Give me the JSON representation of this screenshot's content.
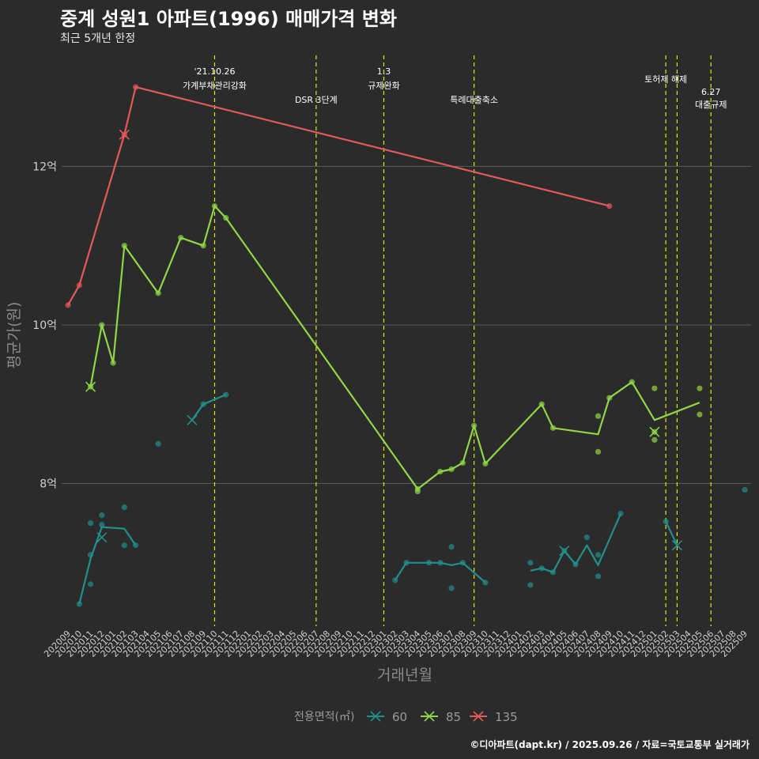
{
  "chart_data": {
    "type": "line",
    "title": "중계 성원1 아파트(1996) 매매가격 변화",
    "subtitle": "최근 5개년 한정",
    "xlabel": "거래년월",
    "ylabel": "평균가(원)",
    "ylim": [
      6.2,
      13.5
    ],
    "yticks": [
      {
        "value": 8,
        "label": "8억"
      },
      {
        "value": 10,
        "label": "10억"
      },
      {
        "value": 12,
        "label": "12억"
      }
    ],
    "categories": [
      "202009",
      "202010",
      "202011",
      "202012",
      "202101",
      "202102",
      "202103",
      "202104",
      "202105",
      "202106",
      "202107",
      "202108",
      "202109",
      "202110",
      "202111",
      "202112",
      "202201",
      "202202",
      "202203",
      "202204",
      "202205",
      "202206",
      "202207",
      "202208",
      "202209",
      "202210",
      "202211",
      "202212",
      "202301",
      "202302",
      "202303",
      "202304",
      "202305",
      "202306",
      "202307",
      "202308",
      "202309",
      "202310",
      "202311",
      "202312",
      "202401",
      "202402",
      "202403",
      "202404",
      "202405",
      "202406",
      "202407",
      "202408",
      "202409",
      "202410",
      "202411",
      "202412",
      "202501",
      "202502",
      "202503",
      "202504",
      "202505",
      "202506",
      "202507",
      "202508",
      "202509"
    ],
    "legend_title": "전용면적(㎡)",
    "series": [
      {
        "name": "60",
        "color": "#21908d",
        "segments": [
          [
            [
              "202010",
              6.48
            ],
            [
              "202011",
              7.05
            ],
            [
              "202012",
              7.45
            ],
            [
              "202102",
              7.43
            ],
            [
              "202103",
              7.22
            ]
          ],
          [
            [
              "202108",
              8.8
            ],
            [
              "202109",
              9.0
            ],
            [
              "202111",
              9.12
            ]
          ],
          [
            [
              "202302",
              6.78
            ],
            [
              "202303",
              7.0
            ],
            [
              "202305",
              7.0
            ],
            [
              "202306",
              7.0
            ],
            [
              "202307",
              6.97
            ],
            [
              "202308",
              7.0
            ],
            [
              "202310",
              6.75
            ]
          ],
          [
            [
              "202402",
              6.9
            ],
            [
              "202403",
              6.93
            ],
            [
              "202404",
              6.88
            ],
            [
              "202405",
              7.15
            ],
            [
              "202406",
              6.98
            ],
            [
              "202407",
              7.22
            ],
            [
              "202408",
              6.97
            ],
            [
              "202410",
              7.62
            ]
          ],
          [
            [
              "202502",
              7.52
            ],
            [
              "202503",
              7.22
            ]
          ]
        ],
        "points": [
          [
            "202010",
            6.48
          ],
          [
            "202011",
            7.5
          ],
          [
            "202011",
            7.1
          ],
          [
            "202011",
            6.73
          ],
          [
            "202012",
            7.6
          ],
          [
            "202012",
            7.48
          ],
          [
            "202102",
            7.7
          ],
          [
            "202102",
            7.22
          ],
          [
            "202103",
            7.22
          ],
          [
            "202105",
            8.5
          ],
          [
            "202109",
            9.0
          ],
          [
            "202111",
            9.12
          ],
          [
            "202302",
            6.78
          ],
          [
            "202303",
            7.0
          ],
          [
            "202305",
            7.0
          ],
          [
            "202306",
            7.0
          ],
          [
            "202307",
            7.2
          ],
          [
            "202307",
            6.68
          ],
          [
            "202308",
            7.0
          ],
          [
            "202310",
            6.75
          ],
          [
            "202402",
            7.0
          ],
          [
            "202402",
            6.72
          ],
          [
            "202403",
            6.93
          ],
          [
            "202404",
            6.88
          ],
          [
            "202405",
            7.15
          ],
          [
            "202406",
            6.98
          ],
          [
            "202407",
            7.32
          ],
          [
            "202408",
            7.1
          ],
          [
            "202408",
            6.83
          ],
          [
            "202410",
            7.62
          ],
          [
            "202502",
            7.52
          ],
          [
            "202509",
            7.92
          ]
        ],
        "x_marks": [
          [
            "202012",
            7.32
          ],
          [
            "202108",
            8.8
          ],
          [
            "202405",
            7.15
          ],
          [
            "202503",
            7.22
          ]
        ]
      },
      {
        "name": "85",
        "color": "#8fd744",
        "segments": [
          [
            [
              "202011",
              9.22
            ],
            [
              "202012",
              10.0
            ],
            [
              "202101",
              9.52
            ],
            [
              "202102",
              11.0
            ],
            [
              "202105",
              10.4
            ],
            [
              "202107",
              11.1
            ],
            [
              "202109",
              11.0
            ],
            [
              "202110",
              11.5
            ],
            [
              "202111",
              11.35
            ],
            [
              "202304",
              7.93
            ],
            [
              "202306",
              8.15
            ],
            [
              "202307",
              8.18
            ],
            [
              "202308",
              8.26
            ],
            [
              "202309",
              8.73
            ],
            [
              "202310",
              8.25
            ],
            [
              "202403",
              9.0
            ],
            [
              "202404",
              8.7
            ],
            [
              "202408",
              8.62
            ],
            [
              "202409",
              9.08
            ],
            [
              "202411",
              9.28
            ],
            [
              "202501",
              8.8
            ],
            [
              "202505",
              9.02
            ]
          ]
        ],
        "points": [
          [
            "202011",
            9.22
          ],
          [
            "202012",
            10.0
          ],
          [
            "202101",
            9.52
          ],
          [
            "202102",
            11.0
          ],
          [
            "202105",
            10.4
          ],
          [
            "202107",
            11.1
          ],
          [
            "202109",
            11.0
          ],
          [
            "202110",
            11.5
          ],
          [
            "202111",
            11.35
          ],
          [
            "202304",
            7.93
          ],
          [
            "202304",
            7.9
          ],
          [
            "202306",
            8.15
          ],
          [
            "202307",
            8.18
          ],
          [
            "202308",
            8.26
          ],
          [
            "202309",
            8.73
          ],
          [
            "202310",
            8.25
          ],
          [
            "202403",
            9.0
          ],
          [
            "202404",
            8.7
          ],
          [
            "202408",
            8.85
          ],
          [
            "202408",
            8.4
          ],
          [
            "202409",
            9.08
          ],
          [
            "202411",
            9.28
          ],
          [
            "202501",
            9.2
          ],
          [
            "202501",
            8.65
          ],
          [
            "202501",
            8.55
          ],
          [
            "202505",
            9.2
          ],
          [
            "202505",
            8.87
          ]
        ],
        "x_marks": [
          [
            "202011",
            9.22
          ],
          [
            "202501",
            8.65
          ]
        ]
      },
      {
        "name": "135",
        "color": "#e25a5a",
        "segments": [
          [
            [
              "202009",
              10.25
            ],
            [
              "202010",
              10.5
            ],
            [
              "202102",
              12.4
            ],
            [
              "202103",
              13.0
            ],
            [
              "202409",
              11.5
            ]
          ]
        ],
        "points": [
          [
            "202009",
            10.25
          ],
          [
            "202010",
            10.5
          ],
          [
            "202102",
            12.4
          ],
          [
            "202103",
            13.0
          ],
          [
            "202409",
            11.5
          ]
        ],
        "x_marks": [
          [
            "202102",
            12.4
          ]
        ]
      }
    ],
    "events": [
      {
        "month": "202110",
        "lines": [
          "'21.10.26",
          "가계부채관리강화"
        ],
        "row": 0
      },
      {
        "month": "202207",
        "lines": [
          "DSR 3단계"
        ],
        "row": 2
      },
      {
        "month": "202301",
        "lines": [
          "1.3",
          "규제완화"
        ],
        "row": 0
      },
      {
        "month": "202309",
        "lines": [
          "특례대출축소"
        ],
        "row": 2
      },
      {
        "month": "202502",
        "lines": [
          "토허제 해제"
        ],
        "row": 1
      },
      {
        "month": "202503",
        "lines": [],
        "row": 1
      },
      {
        "month": "202506",
        "lines": [
          "6.27",
          "대출규제"
        ],
        "row": 3
      }
    ],
    "source": "©디아파트(dapt.kr) / 2025.09.26 / 자료=국토교통부 실거래가"
  }
}
